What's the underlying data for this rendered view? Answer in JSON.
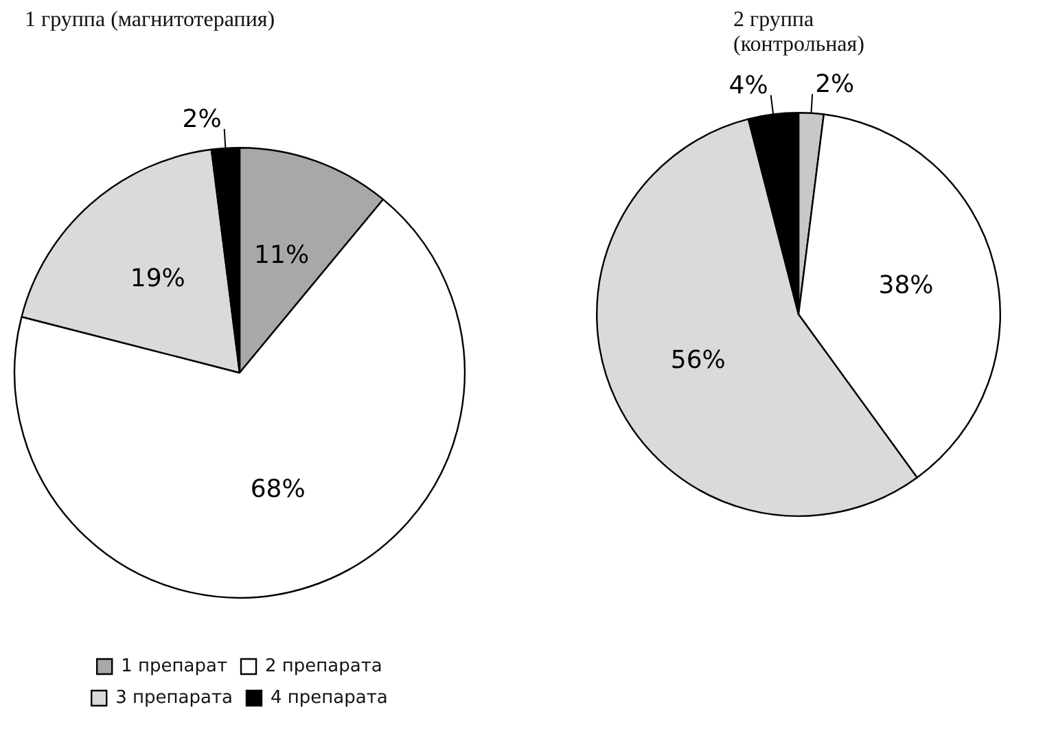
{
  "chart_data": [
    {
      "type": "pie",
      "title": "1 группа (магнитотерапия)",
      "categories": [
        "1 препарат",
        "2 препарата",
        "3 препарата",
        "4 препарата"
      ],
      "values": [
        11,
        68,
        19,
        2
      ],
      "value_labels": [
        "11%",
        "68%",
        "19%",
        "2%"
      ],
      "colors": [
        "#a8a8a8",
        "#ffffff",
        "#dadada",
        "#000000"
      ],
      "legend": "bottom"
    },
    {
      "type": "pie",
      "title": "2 группа (контрольная)",
      "categories": [
        null,
        null,
        null,
        null
      ],
      "values": [
        2,
        38,
        56,
        4
      ],
      "value_labels": [
        "2%",
        "38%",
        "56%",
        "4%"
      ],
      "colors": [
        "#c8c8c8",
        "#ffffff",
        "#dadada",
        "#000000"
      ]
    }
  ]
}
